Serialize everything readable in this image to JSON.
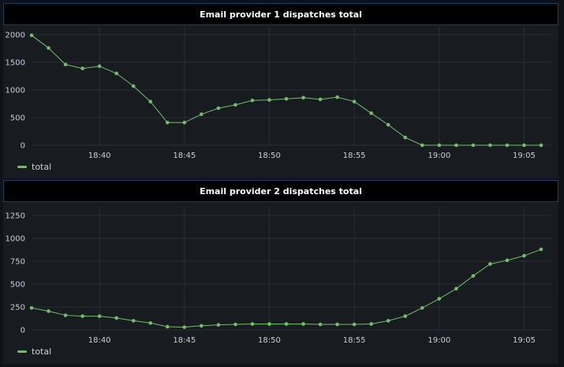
{
  "colors": {
    "series": "#73bf69",
    "grid": "#2a2d33",
    "text": "#ccccdc"
  },
  "panels": [
    {
      "title": "Email provider 1 dispatches total",
      "legend": "total"
    },
    {
      "title": "Email provider 2 dispatches total",
      "legend": "total"
    }
  ],
  "chart_data": [
    {
      "type": "line",
      "title": "Email provider 1 dispatches total",
      "x_unit": "time",
      "xticks": [
        "18:40",
        "18:45",
        "18:50",
        "18:55",
        "19:00",
        "19:05"
      ],
      "yticks": [
        0,
        500,
        1000,
        1500,
        2000
      ],
      "ylim": [
        0,
        2000
      ],
      "series": [
        {
          "name": "total",
          "x": [
            "18:36",
            "18:37",
            "18:38",
            "18:39",
            "18:40",
            "18:41",
            "18:42",
            "18:43",
            "18:44",
            "18:45",
            "18:46",
            "18:47",
            "18:48",
            "18:49",
            "18:50",
            "18:51",
            "18:52",
            "18:53",
            "18:54",
            "18:55",
            "18:56",
            "18:57",
            "18:58",
            "18:59",
            "19:00",
            "19:01",
            "19:02",
            "19:03",
            "19:04",
            "19:05",
            "19:06"
          ],
          "values": [
            1990,
            1760,
            1460,
            1390,
            1430,
            1300,
            1070,
            790,
            410,
            410,
            560,
            670,
            730,
            810,
            820,
            840,
            860,
            830,
            870,
            790,
            580,
            370,
            140,
            0,
            0,
            0,
            0,
            0,
            0,
            0,
            0
          ]
        }
      ],
      "grid": true,
      "legend_position": "bottom-left"
    },
    {
      "type": "line",
      "title": "Email provider 2 dispatches total",
      "x_unit": "time",
      "xticks": [
        "18:40",
        "18:45",
        "18:50",
        "18:55",
        "19:00",
        "19:05"
      ],
      "yticks": [
        0,
        250,
        500,
        750,
        1000,
        1250
      ],
      "ylim": [
        0,
        1250
      ],
      "series": [
        {
          "name": "total",
          "x": [
            "18:36",
            "18:37",
            "18:38",
            "18:39",
            "18:40",
            "18:41",
            "18:42",
            "18:43",
            "18:44",
            "18:45",
            "18:46",
            "18:47",
            "18:48",
            "18:49",
            "18:50",
            "18:51",
            "18:52",
            "18:53",
            "18:54",
            "18:55",
            "18:56",
            "18:57",
            "18:58",
            "18:59",
            "19:00",
            "19:01",
            "19:02",
            "19:03",
            "19:04",
            "19:05",
            "19:06"
          ],
          "values": [
            240,
            205,
            160,
            150,
            150,
            130,
            100,
            75,
            35,
            30,
            45,
            55,
            60,
            65,
            65,
            65,
            65,
            60,
            60,
            60,
            65,
            100,
            150,
            240,
            340,
            450,
            590,
            720,
            760,
            810,
            880
          ]
        }
      ],
      "grid": true,
      "legend_position": "bottom-left"
    }
  ]
}
